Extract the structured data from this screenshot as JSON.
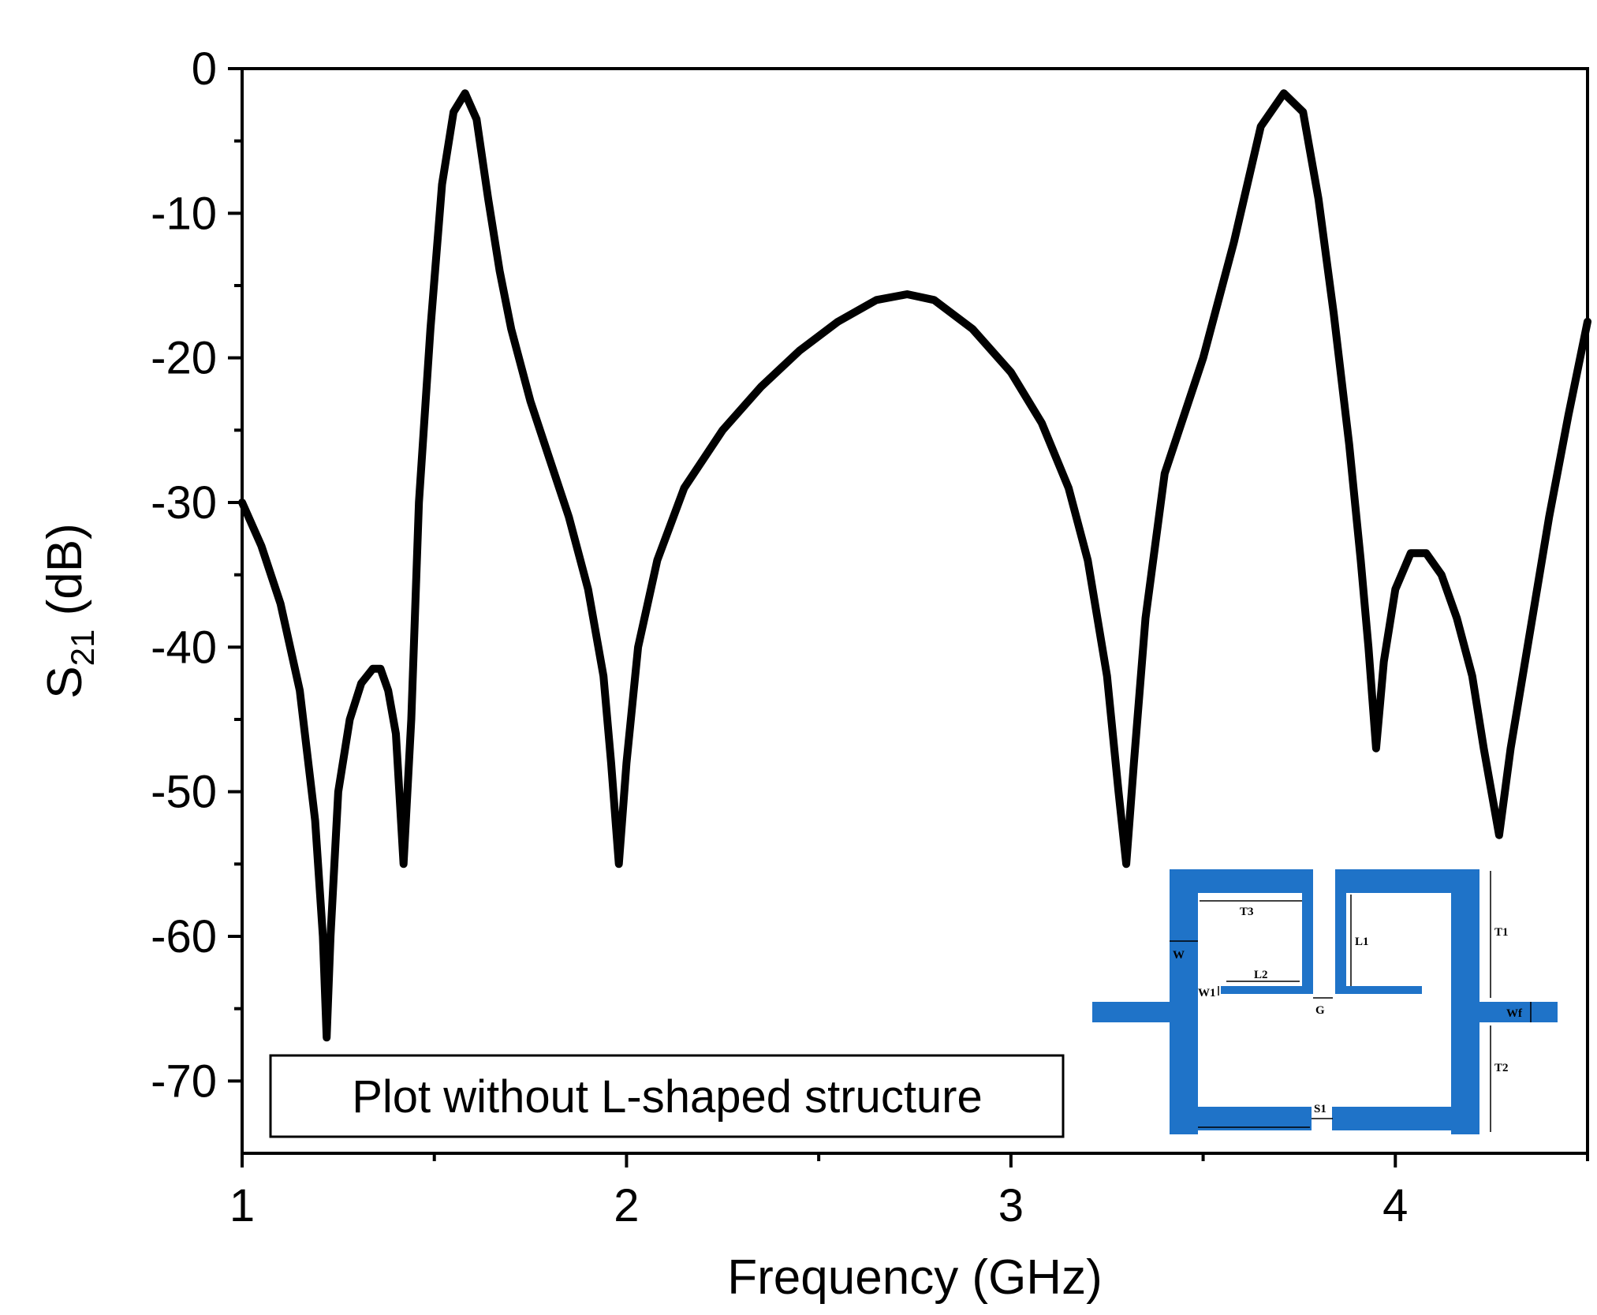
{
  "chart_data": {
    "type": "line",
    "title": "",
    "xlabel": "Frequency (GHz)",
    "ylabel": {
      "main": "S",
      "sub": "21",
      "unit": " (dB)"
    },
    "xlim": [
      1.0,
      4.5
    ],
    "ylim": [
      -75,
      0
    ],
    "xticks": [
      1,
      2,
      3,
      4
    ],
    "xtick_labels": [
      "1",
      "2",
      "3",
      "4"
    ],
    "xminor": [
      1.5,
      2.5,
      3.5,
      4.5
    ],
    "yticks": [
      0,
      -10,
      -20,
      -30,
      -40,
      -50,
      -60,
      -70
    ],
    "ytick_labels": [
      "0",
      "-10",
      "-20",
      "-30",
      "-40",
      "-50",
      "-60",
      "-70"
    ],
    "yminor": [
      -5,
      -15,
      -25,
      -35,
      -45,
      -55,
      -65
    ],
    "grid": false,
    "line_color": "#000000",
    "annotation": "Plot without L-shaped structure",
    "series": [
      {
        "name": "",
        "points": [
          [
            1.0,
            -30
          ],
          [
            1.05,
            -33
          ],
          [
            1.1,
            -37
          ],
          [
            1.15,
            -43
          ],
          [
            1.19,
            -52
          ],
          [
            1.21,
            -60
          ],
          [
            1.22,
            -67
          ],
          [
            1.23,
            -60
          ],
          [
            1.25,
            -50
          ],
          [
            1.28,
            -45
          ],
          [
            1.31,
            -42.5
          ],
          [
            1.34,
            -41.5
          ],
          [
            1.36,
            -41.5
          ],
          [
            1.38,
            -43
          ],
          [
            1.4,
            -46
          ],
          [
            1.42,
            -55
          ],
          [
            1.44,
            -45
          ],
          [
            1.46,
            -30
          ],
          [
            1.49,
            -18
          ],
          [
            1.52,
            -8
          ],
          [
            1.55,
            -3
          ],
          [
            1.58,
            -1.7
          ],
          [
            1.61,
            -3.5
          ],
          [
            1.64,
            -9
          ],
          [
            1.67,
            -14
          ],
          [
            1.7,
            -18
          ],
          [
            1.75,
            -23
          ],
          [
            1.8,
            -27
          ],
          [
            1.85,
            -31
          ],
          [
            1.9,
            -36
          ],
          [
            1.94,
            -42
          ],
          [
            1.96,
            -48
          ],
          [
            1.98,
            -55
          ],
          [
            2.0,
            -48
          ],
          [
            2.03,
            -40
          ],
          [
            2.08,
            -34
          ],
          [
            2.15,
            -29
          ],
          [
            2.25,
            -25
          ],
          [
            2.35,
            -22
          ],
          [
            2.45,
            -19.5
          ],
          [
            2.55,
            -17.5
          ],
          [
            2.65,
            -16
          ],
          [
            2.73,
            -15.6
          ],
          [
            2.8,
            -16
          ],
          [
            2.9,
            -18
          ],
          [
            3.0,
            -21
          ],
          [
            3.08,
            -24.5
          ],
          [
            3.15,
            -29
          ],
          [
            3.2,
            -34
          ],
          [
            3.25,
            -42
          ],
          [
            3.28,
            -50
          ],
          [
            3.3,
            -55
          ],
          [
            3.32,
            -48
          ],
          [
            3.35,
            -38
          ],
          [
            3.4,
            -28
          ],
          [
            3.5,
            -20
          ],
          [
            3.58,
            -12
          ],
          [
            3.65,
            -4
          ],
          [
            3.71,
            -1.7
          ],
          [
            3.76,
            -3
          ],
          [
            3.8,
            -9
          ],
          [
            3.84,
            -17
          ],
          [
            3.88,
            -26
          ],
          [
            3.91,
            -34
          ],
          [
            3.93,
            -40
          ],
          [
            3.95,
            -47
          ],
          [
            3.97,
            -41
          ],
          [
            4.0,
            -36
          ],
          [
            4.04,
            -33.5
          ],
          [
            4.08,
            -33.5
          ],
          [
            4.12,
            -35
          ],
          [
            4.16,
            -38
          ],
          [
            4.2,
            -42
          ],
          [
            4.23,
            -47
          ],
          [
            4.27,
            -53
          ],
          [
            4.3,
            -47
          ],
          [
            4.35,
            -39
          ],
          [
            4.4,
            -31
          ],
          [
            4.45,
            -24
          ],
          [
            4.5,
            -17.5
          ]
        ]
      }
    ]
  },
  "inset": {
    "labels": {
      "T3": "T3",
      "L1": "L1",
      "T1": "T1",
      "W": "W",
      "L2": "L2",
      "W1": "W1",
      "G": "G",
      "Wf": "Wf",
      "T2": "T2",
      "S1": "S1"
    },
    "fill_color": "#1f73c8"
  }
}
